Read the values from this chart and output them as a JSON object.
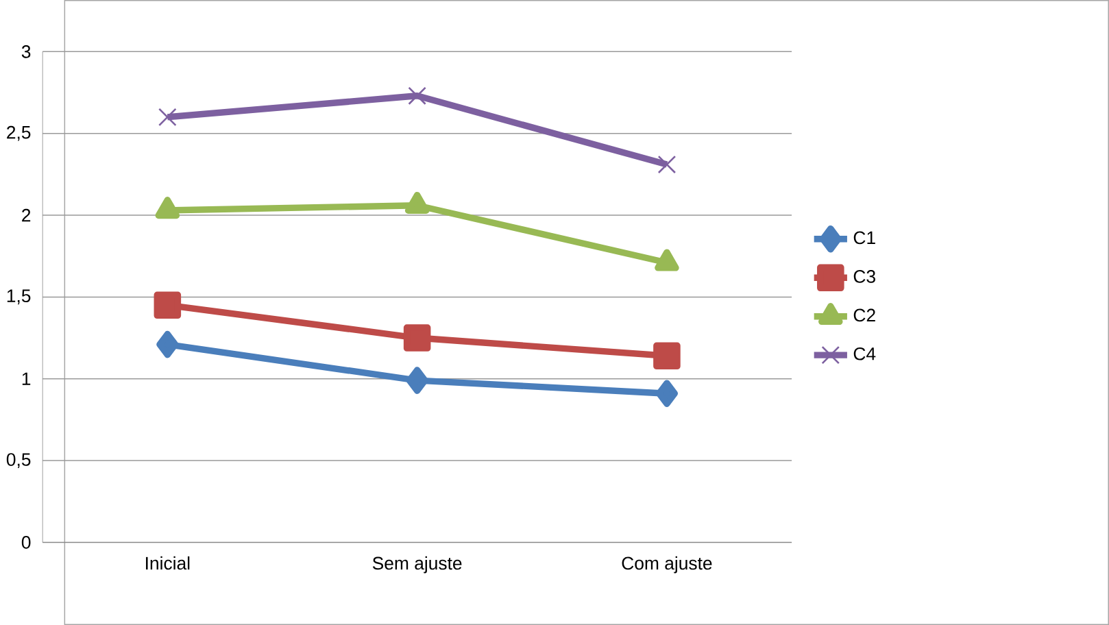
{
  "chart_data": {
    "type": "line",
    "categories": [
      "Inicial",
      "Sem ajuste",
      "Com ajuste"
    ],
    "ylim": [
      0,
      3
    ],
    "yticks": [
      0,
      {
        "value": 0.5,
        "label": "0,5"
      },
      1,
      {
        "value": 1.5,
        "label": "1,5"
      },
      2,
      {
        "value": 2.5,
        "label": "2,5"
      },
      3
    ],
    "grid": "y",
    "legend": "right",
    "line_style": "solid",
    "series": [
      {
        "name": "C1",
        "color": "#4a7ebb",
        "marker": "diamond",
        "values": [
          1.21,
          0.99,
          0.91
        ]
      },
      {
        "name": "C3",
        "color": "#be4b48",
        "marker": "square",
        "values": [
          1.45,
          1.25,
          1.14
        ]
      },
      {
        "name": "C2",
        "color": "#98b954",
        "marker": "triangle",
        "values": [
          2.03,
          2.06,
          1.71
        ]
      },
      {
        "name": "C4",
        "color": "#7d60a0",
        "marker": "cross",
        "values": [
          2.6,
          2.73,
          2.31
        ]
      }
    ]
  }
}
